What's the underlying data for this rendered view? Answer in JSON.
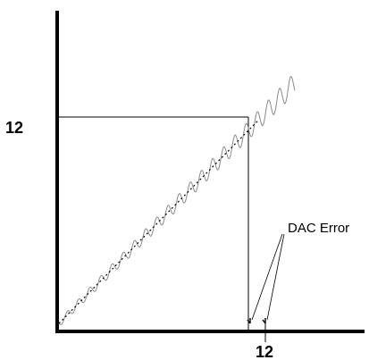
{
  "diagram": {
    "y_tick_label": "12",
    "x_tick_label": "12",
    "annotation": "DAC Error"
  },
  "colors": {
    "ink": "#000000",
    "signal": "#7a7a7a"
  }
}
